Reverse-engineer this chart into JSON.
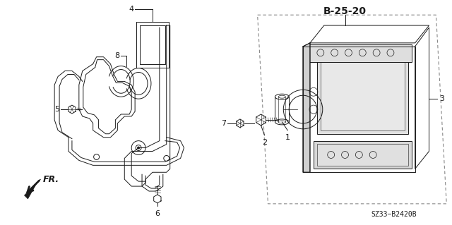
{
  "bg_color": "#ffffff",
  "fig_width": 6.4,
  "fig_height": 3.19,
  "dpi": 100,
  "label_b2520": "B-25-20",
  "label_sz33": "SZ33−B2420B",
  "label_fr": "FR.",
  "dark": "#1a1a1a",
  "gray": "#666666",
  "light_gray": "#cccccc"
}
